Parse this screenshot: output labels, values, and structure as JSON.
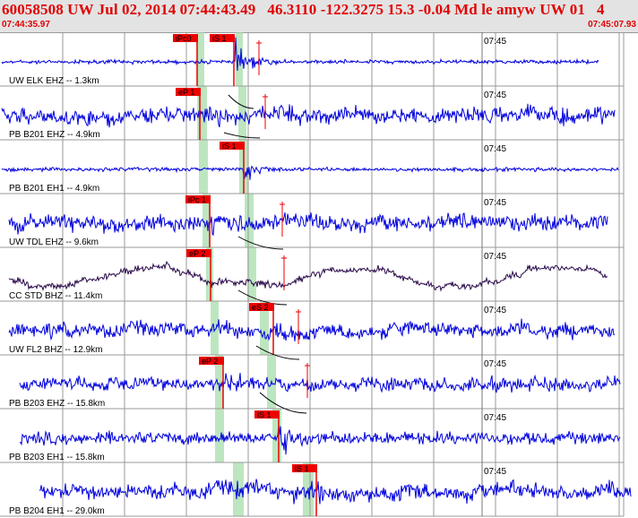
{
  "header": {
    "title": "60058508 UW Jul 02, 2014 07:44:43.49   46.3110 -122.3275 15.3 -0.04 Md le amyw UW 01   4",
    "start_time": "07:44:35.97",
    "end_time": "07:45:07.93"
  },
  "colors": {
    "trace": "#0000dd",
    "trace_alt": "#2a0a4a",
    "pick_box": "#ee0000",
    "window": "#bde6c0",
    "grid": "#9a9a9a",
    "theoretical": "#000000"
  },
  "chart_data": {
    "type": "line",
    "x_range": [
      "07:44:35.97",
      "07:45:07.93"
    ],
    "minute_marker": "07:45",
    "grid": true,
    "traces": [
      {
        "label": "UW ELK EHZ -- 1.3km",
        "picks": [
          "iPc0",
          "iS 1"
        ],
        "window": [
          true,
          true
        ]
      },
      {
        "label": "PB B201 EHZ -- 4.9km",
        "picks": [
          "eP 1"
        ],
        "window": [
          true
        ]
      },
      {
        "label": "PB B201 EH1 -- 4.9km",
        "picks": [
          "iS 1"
        ],
        "window": [
          true
        ]
      },
      {
        "label": "UW TDL EHZ -- 9.6km",
        "picks": [
          "iPc 1"
        ],
        "window": [
          true
        ]
      },
      {
        "label": "CC STD BHZ -- 11.4km",
        "picks": [
          "eP 2"
        ],
        "window": [
          true
        ]
      },
      {
        "label": "UW FL2 BHZ -- 12.9km",
        "picks": [
          "eS 2"
        ],
        "window": [
          true
        ]
      },
      {
        "label": "PB B203 EHZ -- 15.8km",
        "picks": [
          "eP 2"
        ],
        "window": [
          true
        ]
      },
      {
        "label": "PB B203 EH1 -- 15.8km",
        "picks": [
          "iS 1"
        ],
        "window": [
          true
        ]
      },
      {
        "label": "PB B204 EH1 -- 29.0km",
        "picks": [
          "iS 1"
        ],
        "window": [
          true
        ]
      }
    ]
  }
}
